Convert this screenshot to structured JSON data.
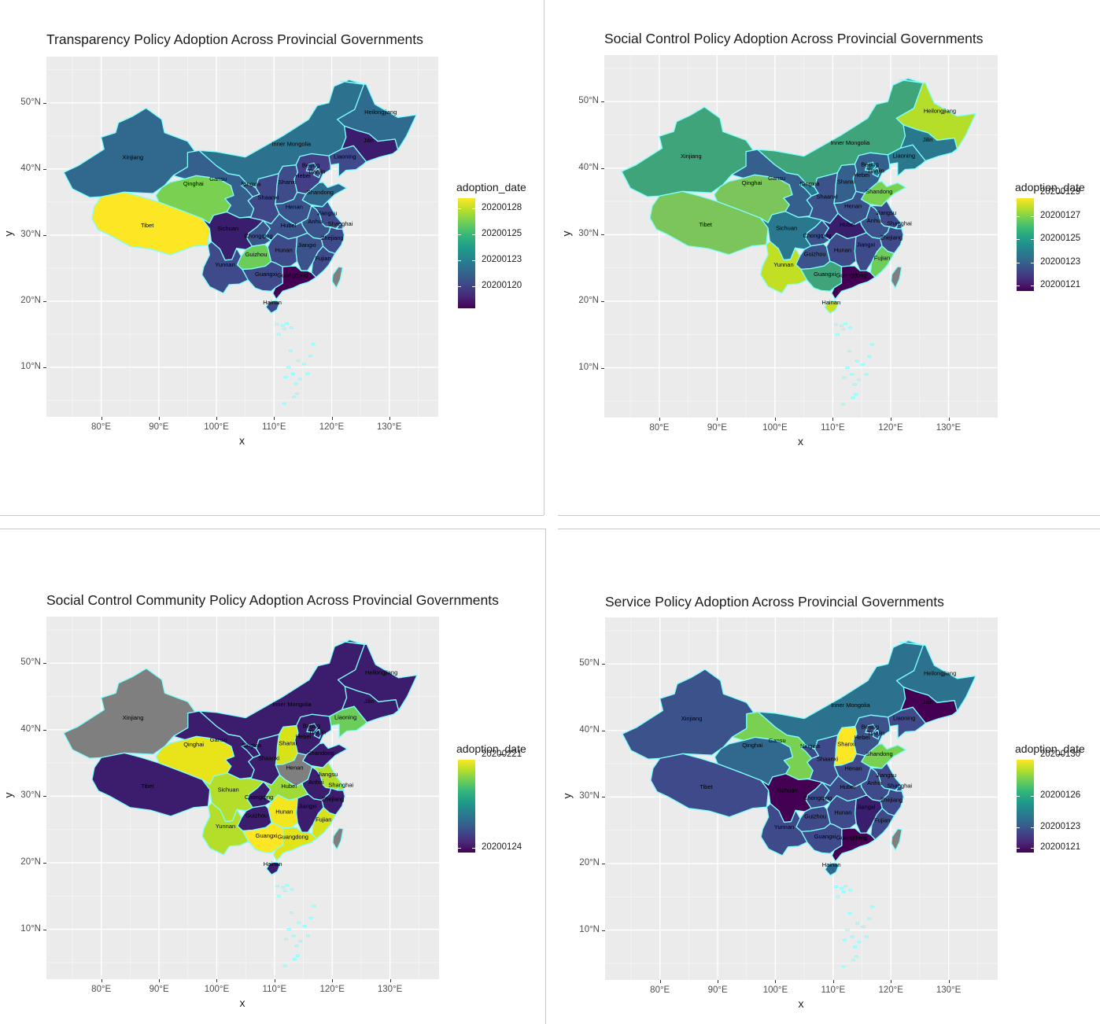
{
  "panels": [
    {
      "title": "Transparency Policy Adoption Across Provincial Governments",
      "xlabel": "x",
      "ylabel": "y",
      "x_ticks": [
        "80°E",
        "90°E",
        "100°E",
        "110°E",
        "120°E",
        "130°E"
      ],
      "y_ticks": [
        "50°N",
        "40°N",
        "30°N",
        "20°N",
        "10°N"
      ],
      "legend_title": "adoption_date",
      "legend_labels": [
        "20200128",
        "20200125",
        "20200123",
        "20200120"
      ],
      "province_colors": {
        "Xinjiang": "#31688e",
        "Tibet": "#fde725",
        "Qinghai": "#7ad151",
        "Inner Mongolia": "#2c728e",
        "Heilongjiang": "#2f6b8e",
        "Jilin": "#3b1c6d",
        "Liaoning": "#3e4a89",
        "Gansu": "#355f8d",
        "Ningxia": "#3b528b",
        "Shaanxi": "#3f4788",
        "Shanxi": "#3e4c8a",
        "Hebei": "#433e85",
        "Beijing": "#3e4a89",
        "Tianjin": "#3e4a89",
        "Shandong": "#31688e",
        "Henan": "#3b528b",
        "Jiangsu": "#3e4a89",
        "Anhui": "#3b528b",
        "Shanghai": "#3e4a89",
        "Hubei": "#3b528b",
        "Sichuan": "#3a1e6e",
        "Chongqing": "#3b528b",
        "Hunan": "#3e4a89",
        "Jiangxi": "#3b528b",
        "Zhejiang": "#3e4a89",
        "Yunnan": "#3e4a89",
        "Guizhou": "#6ccd5a",
        "Guangxi": "#3e4a89",
        "Guangdong": "#440154",
        "Fujian": "#3e4a89",
        "Hainan": "#3e4a89",
        "Taiwan": "#7f7f7f"
      }
    },
    {
      "title": "Social Control Policy Adoption Across Provincial Governments",
      "xlabel": "x",
      "ylabel": "y",
      "x_ticks": [
        "80°E",
        "90°E",
        "100°E",
        "110°E",
        "120°E",
        "130°E"
      ],
      "y_ticks": [
        "50°N",
        "40°N",
        "30°N",
        "20°N",
        "10°N"
      ],
      "legend_title": "adoption_date",
      "legend_labels": [
        "20200129",
        "20200127",
        "20200125",
        "20200123",
        "20200121"
      ],
      "province_colors": {
        "Xinjiang": "#3fa47a",
        "Tibet": "#7cc55a",
        "Qinghai": "#7cc55a",
        "Inner Mongolia": "#3fa47a",
        "Heilongjiang": "#b5de2b",
        "Jilin": "#2a788e",
        "Liaoning": "#2a788e",
        "Gansu": "#355f8d",
        "Ningxia": "#2a788e",
        "Shaanxi": "#3b528b",
        "Shanxi": "#355f8d",
        "Hebei": "#355f8d",
        "Beijing": "#2a788e",
        "Tianjin": "#2a788e",
        "Shandong": "#7ad151",
        "Henan": "#3b528b",
        "Jiangsu": "#3e4a89",
        "Anhui": "#3b528b",
        "Shanghai": "#3e4a89",
        "Hubei": "#3a1e6e",
        "Sichuan": "#2a788e",
        "Chongqing": "#3b528b",
        "Hunan": "#3e4a89",
        "Jiangxi": "#3e4a89",
        "Zhejiang": "#3e4a89",
        "Yunnan": "#c2df23",
        "Guizhou": "#3b528b",
        "Guangxi": "#3fa47a",
        "Guangdong": "#440154",
        "Fujian": "#6ccd5a",
        "Hainan": "#c8e020",
        "Taiwan": "#7f7f7f"
      }
    },
    {
      "title": "Social Control Community Policy Adoption Across Provincial Governments",
      "xlabel": "x",
      "ylabel": "y",
      "x_ticks": [
        "80°E",
        "90°E",
        "100°E",
        "110°E",
        "120°E",
        "130°E"
      ],
      "y_ticks": [
        "50°N",
        "40°N",
        "30°N",
        "20°N",
        "10°N"
      ],
      "legend_title": "adoption_date",
      "legend_labels": [
        "20200221",
        "20200124"
      ],
      "province_colors": {
        "Xinjiang": "#7f7f7f",
        "Tibet": "#3b1c6d",
        "Qinghai": "#e8e419",
        "Inner Mongolia": "#3b1c6d",
        "Heilongjiang": "#3b1c6d",
        "Jilin": "#3b1c6d",
        "Liaoning": "#6ccd5a",
        "Gansu": "#3b1c6d",
        "Ningxia": "#3b1c6d",
        "Shaanxi": "#3b1c6d",
        "Shanxi": "#d8e219",
        "Hebei": "#3b1c6d",
        "Beijing": "#3b1c6d",
        "Tianjin": "#3b1c6d",
        "Shandong": "#3b1c6d",
        "Henan": "#7f7f7f",
        "Jiangsu": "#b5de2b",
        "Anhui": "#3b1c6d",
        "Shanghai": "#b5de2b",
        "Hubei": "#a0da39",
        "Sichuan": "#b5de2b",
        "Chongqing": "#3b1c6d",
        "Hunan": "#f3e51e",
        "Jiangxi": "#3b1c6d",
        "Zhejiang": "#3b1c6d",
        "Yunnan": "#b5de2b",
        "Guizhou": "#3b1c6d",
        "Guangxi": "#fde725",
        "Guangdong": "#e3e418",
        "Fujian": "#d8e219",
        "Hainan": "#3b1c6d",
        "Taiwan": "#7f7f7f"
      }
    },
    {
      "title": "Service Policy Adoption Across Provincial Governments",
      "xlabel": "x",
      "ylabel": "y",
      "x_ticks": [
        "80°E",
        "90°E",
        "100°E",
        "110°E",
        "120°E",
        "130°E"
      ],
      "y_ticks": [
        "50°N",
        "40°N",
        "30°N",
        "20°N",
        "10°N"
      ],
      "legend_title": "adoption_date",
      "legend_labels": [
        "20200130",
        "20200126",
        "20200123",
        "20200121"
      ],
      "province_colors": {
        "Xinjiang": "#3b528b",
        "Tibet": "#3e4a89",
        "Qinghai": "#31688e",
        "Inner Mongolia": "#2c728e",
        "Heilongjiang": "#2c728e",
        "Jilin": "#440154",
        "Liaoning": "#3e4a89",
        "Gansu": "#7ad151",
        "Ningxia": "#3e4a89",
        "Shaanxi": "#3e4a89",
        "Shanxi": "#fde725",
        "Hebei": "#3b528b",
        "Beijing": "#3e4a89",
        "Tianjin": "#3e4a89",
        "Shandong": "#7ad151",
        "Henan": "#3e4a89",
        "Jiangsu": "#3e4a89",
        "Anhui": "#3e4a89",
        "Shanghai": "#3e4a89",
        "Hubei": "#3e4a89",
        "Sichuan": "#440154",
        "Chongqing": "#3e4a89",
        "Hunan": "#3e4a89",
        "Jiangxi": "#3a1e6e",
        "Zhejiang": "#3e4a89",
        "Yunnan": "#3e4a89",
        "Guizhou": "#3e4a89",
        "Guangxi": "#3e4a89",
        "Guangdong": "#440154",
        "Fujian": "#3e4a89",
        "Hainan": "#31688e",
        "Taiwan": "#7f7f7f"
      }
    }
  ]
}
